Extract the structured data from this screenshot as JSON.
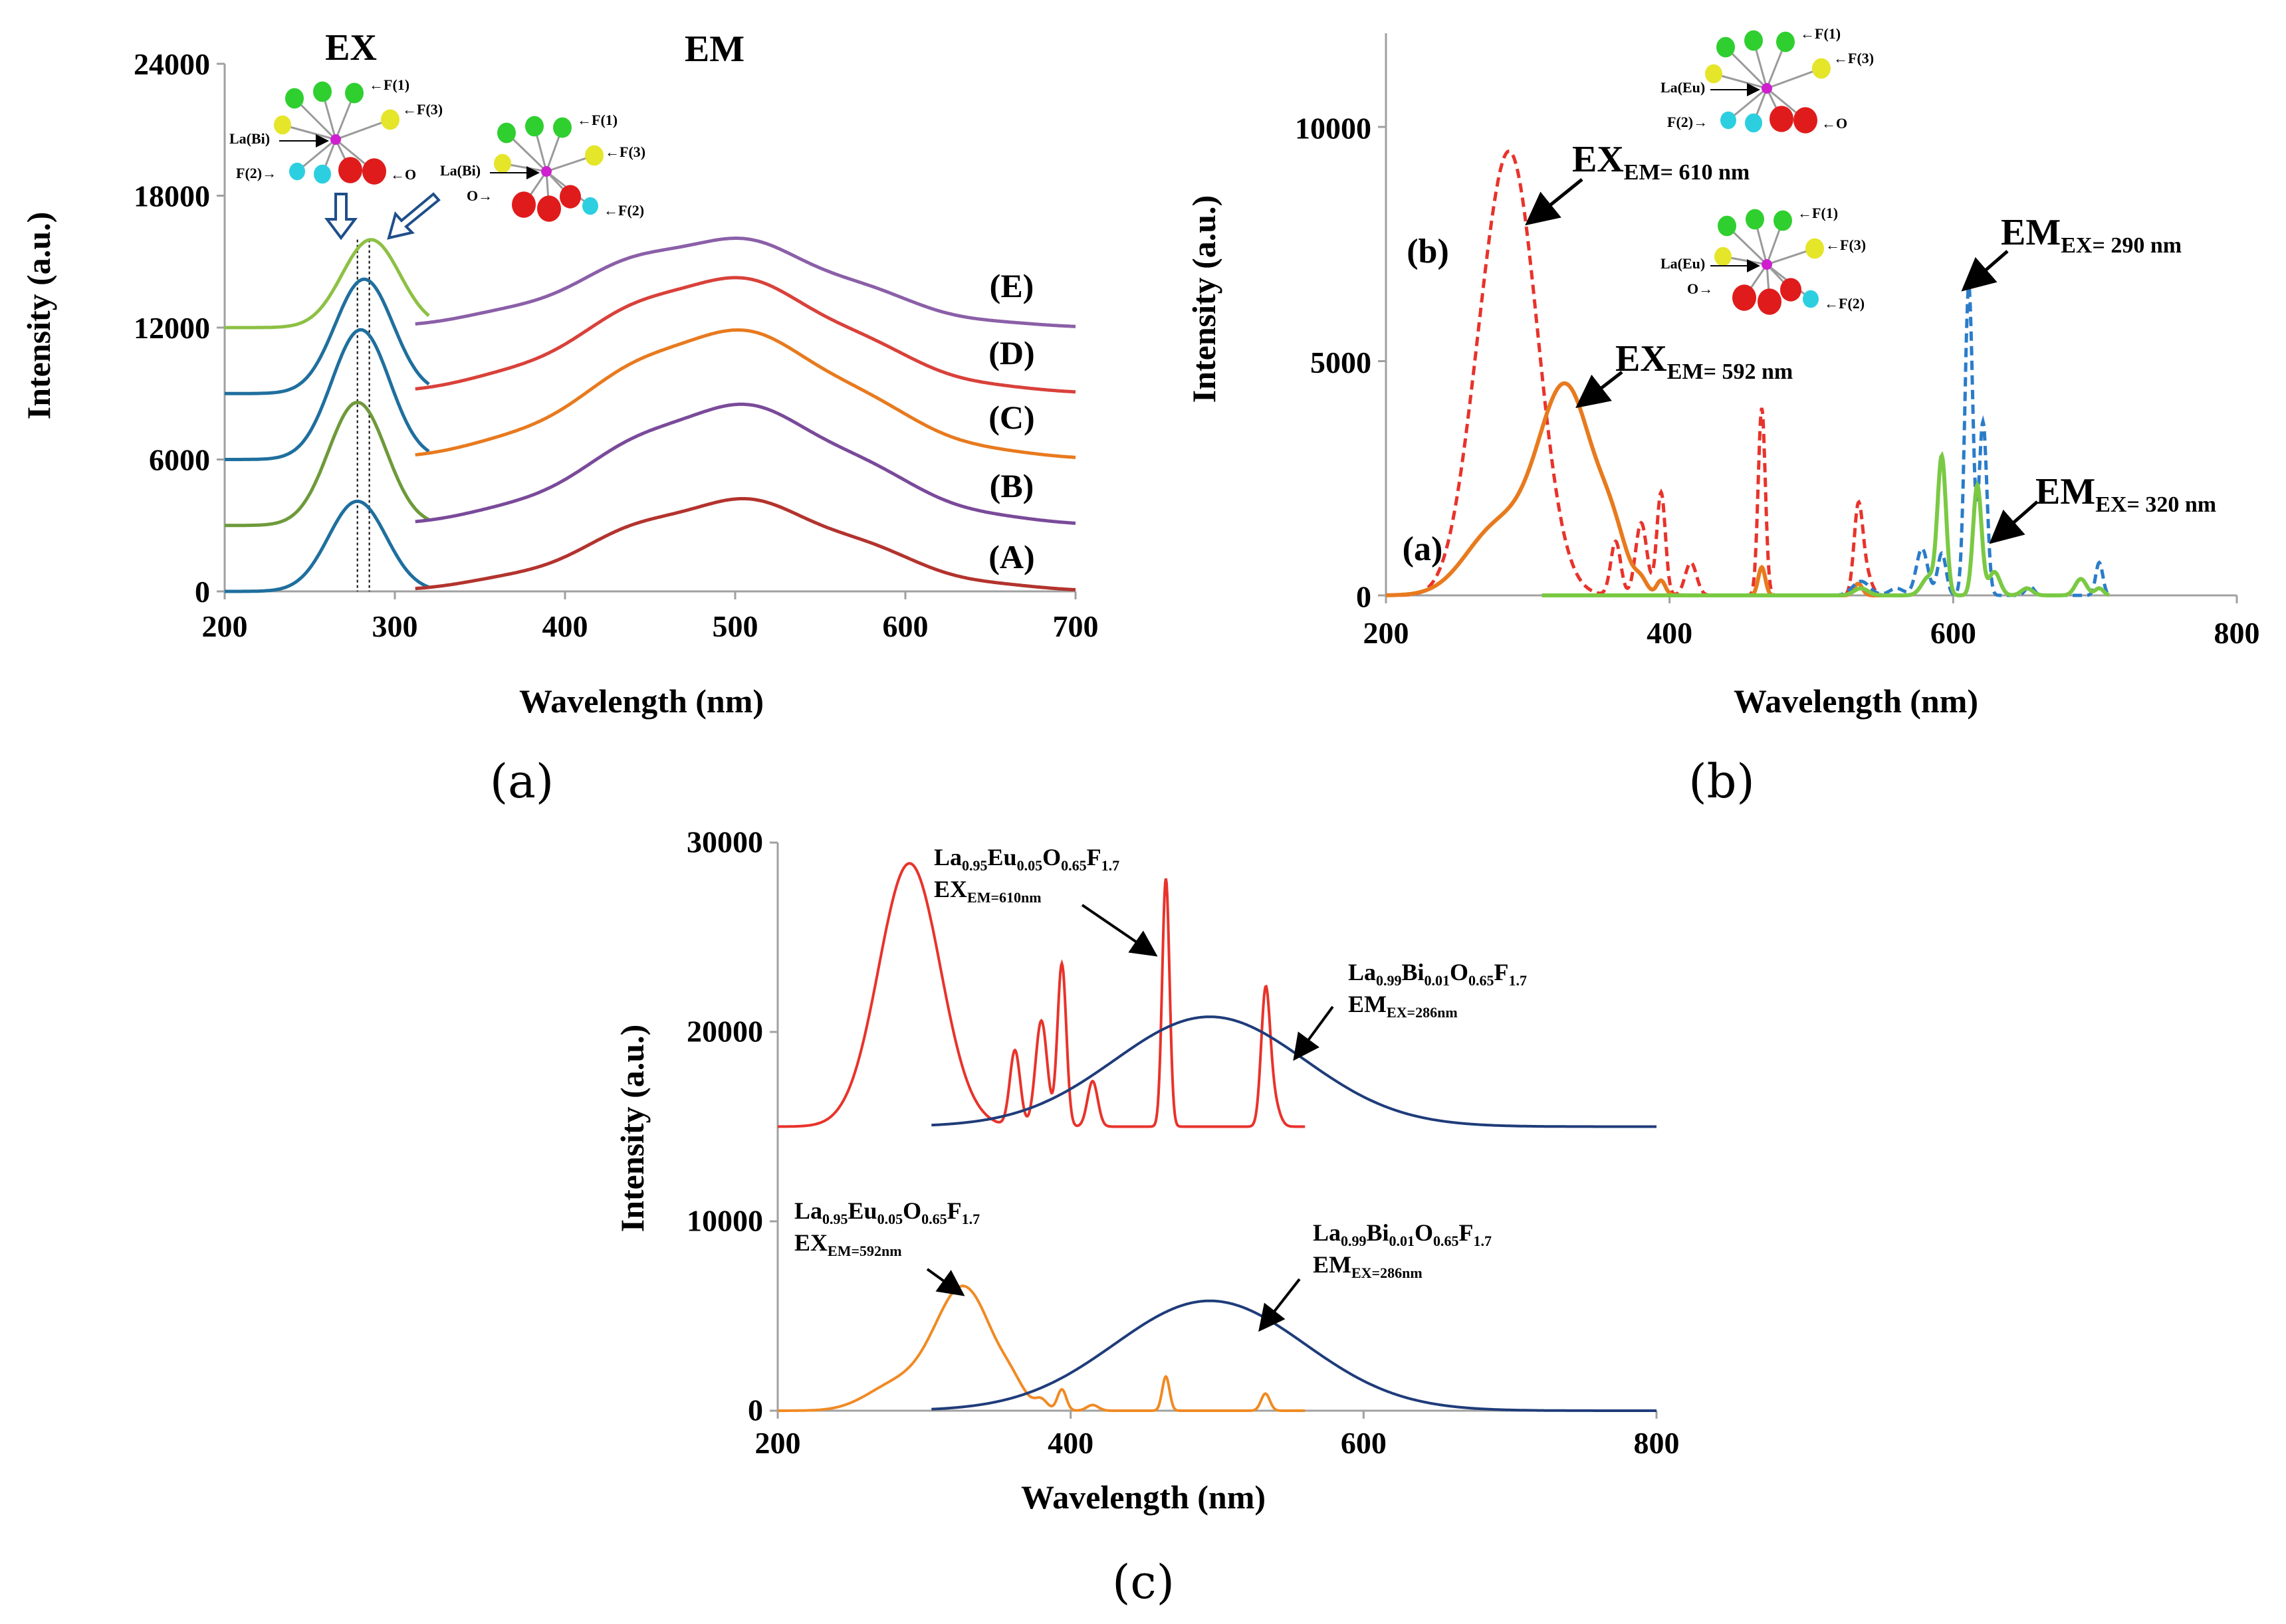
{
  "captions": {
    "a": "(a)",
    "b": "(b)",
    "c": "(c)"
  },
  "chart_data": [
    {
      "id": "a",
      "type": "line",
      "xlabel": "Wavelength (nm)",
      "ylabel": "Intensity (a.u.)",
      "xlim": [
        200,
        700
      ],
      "ylim": [
        0,
        24000
      ],
      "xticks": [
        200,
        300,
        400,
        500,
        600,
        700
      ],
      "yticks": [
        0,
        6000,
        12000,
        18000,
        24000
      ],
      "tick_labels_y": [
        "0",
        "6000",
        "12000",
        "18000",
        "24000"
      ],
      "tick_labels_x": [
        "200",
        "300",
        "400",
        "500",
        "600",
        "700"
      ],
      "region_labels": {
        "ex": "EX",
        "em": "EM"
      },
      "ex_peaks_nm": [
        278,
        285
      ],
      "series": [
        {
          "name": "(A)",
          "color": "#1f6f9e",
          "em_color": "#b3332e",
          "offset": 0,
          "ex_peak": 278,
          "ex_height": 4100,
          "em_peak": 498,
          "em_height": 4100
        },
        {
          "name": "(B)",
          "color": "#6e9a3a",
          "em_color": "#7a4a9a",
          "offset": 3000,
          "ex_peak": 278,
          "ex_height": 5600,
          "em_peak": 498,
          "em_height": 5400
        },
        {
          "name": "(C)",
          "color": "#1f6f9e",
          "em_color": "#e87a1e",
          "offset": 6000,
          "ex_peak": 280,
          "ex_height": 5900,
          "em_peak": 495,
          "em_height": 5800
        },
        {
          "name": "(D)",
          "color": "#1f6f9e",
          "em_color": "#d9413a",
          "offset": 9000,
          "ex_peak": 282,
          "ex_height": 5200,
          "em_peak": 492,
          "em_height": 5200
        },
        {
          "name": "(E)",
          "color": "#8dc044",
          "em_color": "#8b5fa8",
          "offset": 12000,
          "ex_peak": 286,
          "ex_height": 4000,
          "em_peak": 490,
          "em_height": 4000
        }
      ],
      "insets": [
        {
          "center": "La(Bi)",
          "labels": [
            "F(1)",
            "F(3)",
            "F(2)",
            "O"
          ]
        },
        {
          "center": "La(Bi)",
          "labels": [
            "F(1)",
            "F(3)",
            "O",
            "F(2)"
          ]
        }
      ]
    },
    {
      "id": "b",
      "type": "line",
      "xlabel": "Wavelength (nm)",
      "ylabel": "Intensity (a.u.)",
      "xlim": [
        200,
        800
      ],
      "ylim": [
        0,
        12000
      ],
      "xticks": [
        200,
        400,
        600,
        800
      ],
      "yticks": [
        0,
        5000,
        10000
      ],
      "tick_labels_y": [
        "0",
        "5000",
        "10000"
      ],
      "tick_labels_x": [
        "200",
        "400",
        "600",
        "800"
      ],
      "side_labels": [
        "(b)",
        "(a)"
      ],
      "series": [
        {
          "name": "EX_EM=610 nm",
          "color": "#e8332b",
          "dash": true,
          "peaks": [
            [
              288,
              9250,
              19
            ],
            [
              262,
              1200,
              14
            ],
            [
              362,
              1150,
              3.5
            ],
            [
              380,
              1550,
              4
            ],
            [
              394,
              2200,
              3
            ],
            [
              415,
              700,
              4
            ],
            [
              465,
              4000,
              2.5
            ],
            [
              533,
              1750,
              3
            ],
            [
              538,
              500,
              4
            ]
          ],
          "range": [
            200,
            560
          ]
        },
        {
          "name": "EX_EM=592 nm",
          "color": "#e87a1e",
          "dash": false,
          "peaks": [
            [
              327,
              4400,
              20
            ],
            [
              278,
              1400,
              22
            ],
            [
              360,
              800,
              10
            ],
            [
              380,
              200,
              4
            ],
            [
              394,
              300,
              3
            ],
            [
              465,
              600,
              2.5
            ],
            [
              533,
              250,
              3
            ]
          ],
          "range": [
            200,
            560
          ]
        },
        {
          "name": "EM_EX=290 nm",
          "color": "#2a7cc9",
          "dash": true,
          "peaks": [
            [
              578,
              1000,
              4
            ],
            [
              592,
              900,
              3
            ],
            [
              611,
              6600,
              2.8
            ],
            [
              621,
              3700,
              2.8
            ],
            [
              654,
              200,
              3
            ],
            [
              703,
              700,
              2.5
            ],
            [
              535,
              300,
              6
            ],
            [
              560,
              150,
              5
            ]
          ],
          "range": [
            310,
            710
          ]
        },
        {
          "name": "EM_EX=320 nm",
          "color": "#7ac943",
          "dash": false,
          "peaks": [
            [
              592,
              2900,
              3
            ],
            [
              583,
              400,
              5
            ],
            [
              617,
              2350,
              3
            ],
            [
              629,
              500,
              4
            ],
            [
              652,
              150,
              4
            ],
            [
              690,
              350,
              4
            ],
            [
              703,
              150,
              3
            ],
            [
              535,
              150,
              5
            ]
          ],
          "range": [
            310,
            710
          ]
        }
      ],
      "annotations": [
        {
          "main": "EX",
          "sub": "EM= 610 nm"
        },
        {
          "main": "EX",
          "sub": "EM= 592 nm"
        },
        {
          "main": "EM",
          "sub": "EX= 290 nm"
        },
        {
          "main": "EM",
          "sub": "EX= 320 nm"
        }
      ],
      "insets": [
        {
          "center": "La(Eu)",
          "labels": [
            "F(1)",
            "F(3)",
            "F(2)",
            "O"
          ]
        },
        {
          "center": "La(Eu)",
          "labels": [
            "F(1)",
            "F(3)",
            "O",
            "F(2)"
          ]
        }
      ]
    },
    {
      "id": "c",
      "type": "line",
      "xlabel": "Wavelength (nm)",
      "ylabel": "Intensity (a.u.)",
      "xlim": [
        200,
        800
      ],
      "ylim": [
        0,
        30000
      ],
      "xticks": [
        200,
        400,
        600,
        800
      ],
      "yticks": [
        0,
        10000,
        20000,
        30000
      ],
      "tick_labels_y": [
        "0",
        "10000",
        "20000",
        "30000"
      ],
      "tick_labels_x": [
        "200",
        "400",
        "600",
        "800"
      ],
      "series": [
        {
          "name": "Eu_EX_EM610",
          "color": "#e8332b",
          "offset": 15000,
          "peaks": [
            [
              290,
              13900,
              21
            ],
            [
              362,
              4000,
              3.5
            ],
            [
              380,
              5600,
              4
            ],
            [
              394,
              8600,
              3
            ],
            [
              415,
              2400,
              3.5
            ],
            [
              465,
              13100,
              2.5
            ],
            [
              533,
              6700,
              3
            ],
            [
              538,
              1500,
              4
            ]
          ],
          "range": [
            200,
            560
          ]
        },
        {
          "name": "Bi_EM_EX286_top",
          "color": "#1f3c7a",
          "offset": 15000,
          "gauss": [
            495,
            5800,
            65
          ],
          "range": [
            305,
            800
          ]
        },
        {
          "name": "Eu_EX_EM592",
          "color": "#f08a24",
          "offset": 0,
          "peaks": [
            [
              327,
              6500,
              20
            ],
            [
              280,
              1300,
              20
            ],
            [
              360,
              600,
              8
            ],
            [
              380,
              450,
              4
            ],
            [
              394,
              1100,
              3
            ],
            [
              415,
              300,
              4
            ],
            [
              465,
              1800,
              2.5
            ],
            [
              533,
              900,
              3
            ]
          ],
          "range": [
            200,
            560
          ]
        },
        {
          "name": "Bi_EM_EX286_bottom",
          "color": "#1f3c7a",
          "offset": 0,
          "gauss": [
            495,
            5800,
            65
          ],
          "range": [
            305,
            800
          ]
        }
      ],
      "annotations": [
        {
          "formula": [
            "La",
            "0.95",
            "Eu",
            "0.05",
            "O",
            "0.65",
            "F",
            "1.7"
          ],
          "main": "EX",
          "sub": "EM=610nm"
        },
        {
          "formula": [
            "La",
            "0.99",
            "Bi",
            "0.01",
            "O",
            "0.65",
            "F",
            "1.7"
          ],
          "main": "EM",
          "sub": "EX=286nm"
        },
        {
          "formula": [
            "La",
            "0.95",
            "Eu",
            "0.05",
            "O",
            "0.65",
            "F",
            "1.7"
          ],
          "main": "EX",
          "sub": "EM=592nm"
        },
        {
          "formula": [
            "La",
            "0.99",
            "Bi",
            "0.01",
            "O",
            "0.65",
            "F",
            "1.7"
          ],
          "main": "EM",
          "sub": "EX=286nm"
        }
      ]
    }
  ],
  "colors": {
    "axis": "#a0a0a0",
    "tick": "#000000",
    "atom_green": "#2fcf2f",
    "atom_yellow": "#e5e52a",
    "atom_red": "#e01b1b",
    "atom_cyan": "#2ccfe0",
    "atom_magenta": "#cf1fcf"
  }
}
